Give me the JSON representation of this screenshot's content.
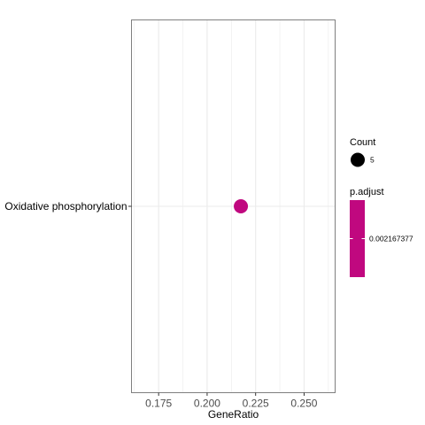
{
  "chart_data": {
    "type": "scatter",
    "xlabel": "GeneRatio",
    "ylabel": "",
    "xlim": [
      0.161,
      0.266
    ],
    "x_ticks": [
      0.175,
      0.2,
      0.225,
      0.25
    ],
    "x_tick_labels": [
      "0.175",
      "0.200",
      "0.225",
      "0.250"
    ],
    "categories": [
      "Oxidative phosphorylation"
    ],
    "points": [
      {
        "category": "Oxidative phosphorylation",
        "x": 0.2174,
        "count": 5,
        "p_adjust": 0.002167377
      }
    ],
    "grid": true,
    "legend_position": "right",
    "legend": {
      "size_title": "Count",
      "size_entries": [
        {
          "label": "5",
          "value": 5
        }
      ],
      "color_title": "p.adjust",
      "color_entries": [
        {
          "label": "0.002167377",
          "value": 0.002167377
        }
      ]
    },
    "colors": {
      "point": "#c0087f",
      "panel_border": "#7f7f7f",
      "grid": "#ebebeb",
      "tick_text": "#4d4d4d"
    }
  }
}
